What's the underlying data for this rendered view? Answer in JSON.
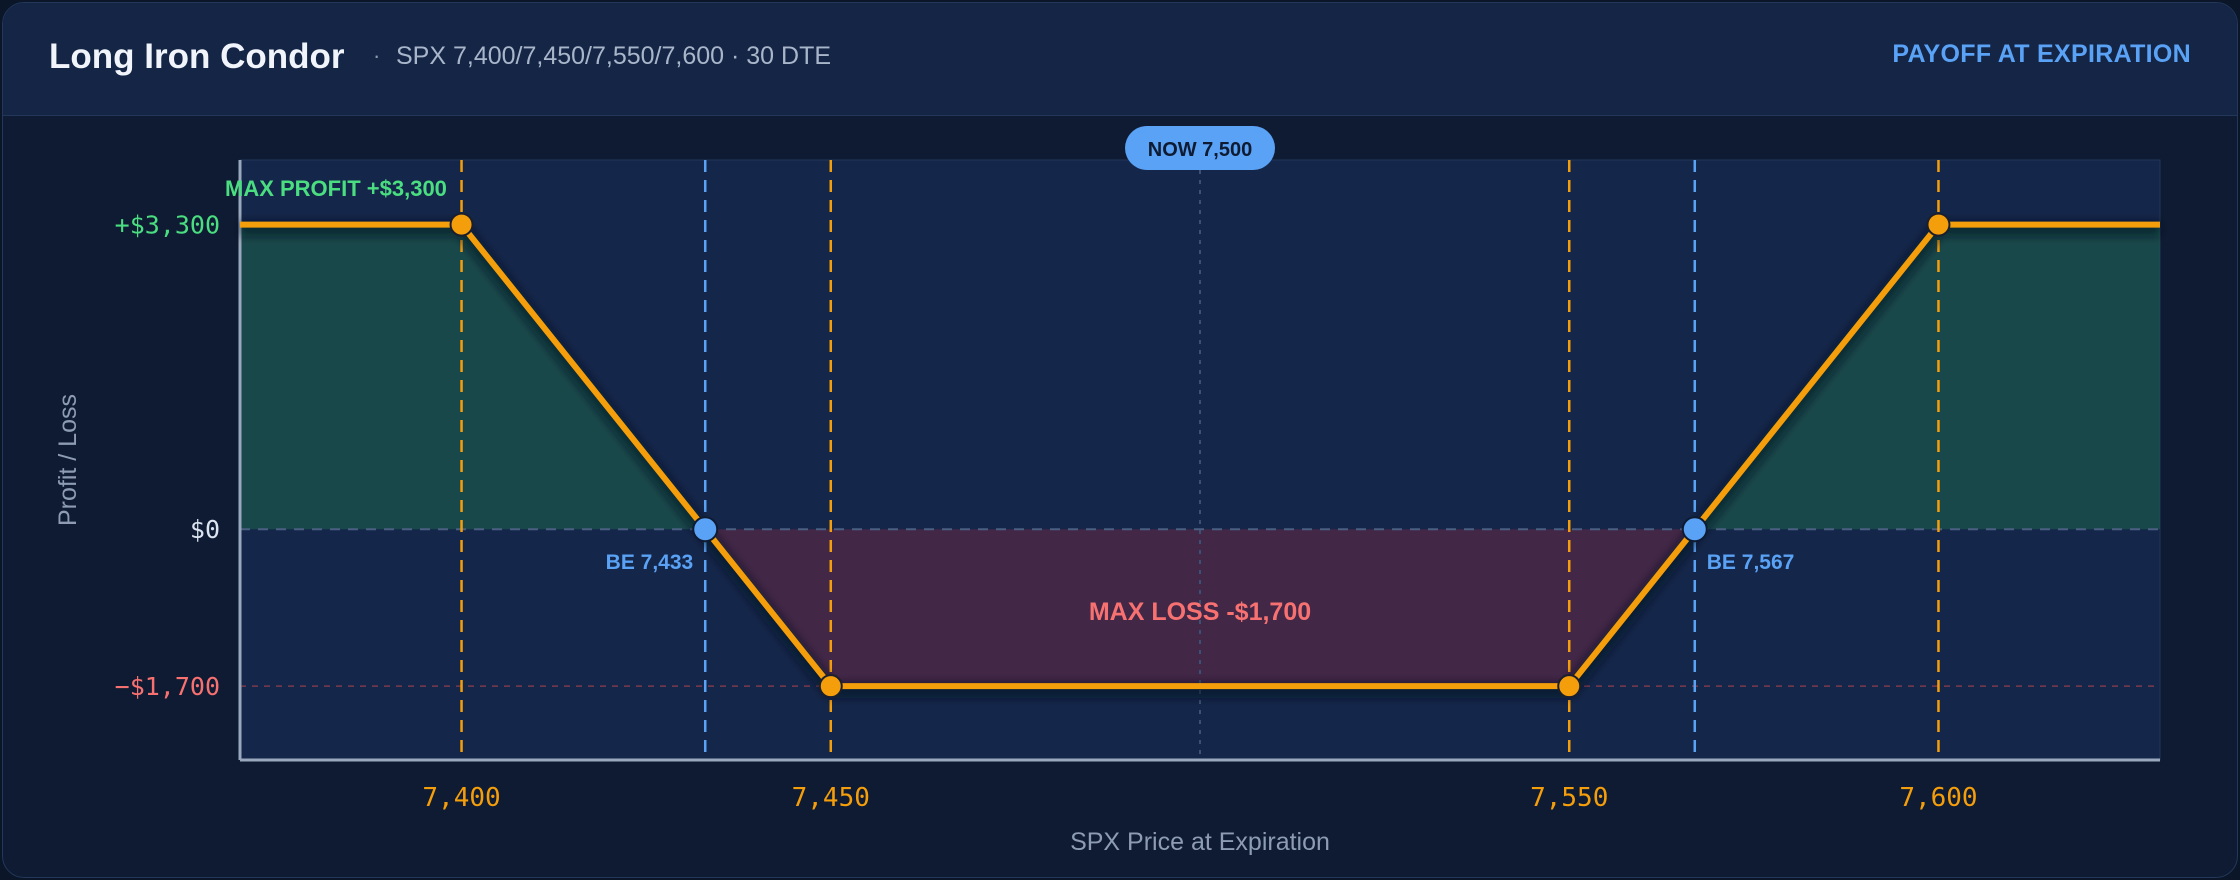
{
  "header": {
    "title": "Long Iron Condor",
    "separator": "·",
    "subtitle": "SPX 7,400/7,450/7,550/7,600 · 30 DTE",
    "mode": "PAYOFF AT EXPIRATION"
  },
  "chart_data": {
    "type": "line",
    "title": "Long Iron Condor",
    "xlabel": "SPX Price at Expiration",
    "ylabel": "Profit / Loss",
    "xlim": [
      7370,
      7630
    ],
    "ylim": [
      -2500,
      4000
    ],
    "x_ticks": [
      {
        "value": 7400,
        "label": "7,400"
      },
      {
        "value": 7450,
        "label": "7,450"
      },
      {
        "value": 7550,
        "label": "7,550"
      },
      {
        "value": 7600,
        "label": "7,600"
      }
    ],
    "y_ticks": [
      {
        "value": 3300,
        "label": "+$3,300"
      },
      {
        "value": 0,
        "label": "$0"
      },
      {
        "value": -1700,
        "label": "−$1,700"
      }
    ],
    "series": [
      {
        "points": [
          [
            7370,
            3300
          ],
          [
            7400,
            3300
          ],
          [
            7433,
            0
          ],
          [
            7450,
            -1700
          ],
          [
            7550,
            -1700
          ],
          [
            7567,
            0
          ],
          [
            7600,
            3300
          ],
          [
            7630,
            3300
          ]
        ]
      }
    ],
    "strikes": [
      7400,
      7450,
      7550,
      7600
    ],
    "breakevens": [
      {
        "x": 7433,
        "label": "BE 7,433"
      },
      {
        "x": 7567,
        "label": "BE 7,567"
      }
    ],
    "current_price": {
      "x": 7500,
      "label": "NOW 7,500"
    },
    "annotations": {
      "max_profit": "MAX PROFIT  +$3,300",
      "max_loss": "MAX LOSS  -$1,700"
    },
    "colors": {
      "payoff_line": "#f59e0b",
      "breakeven": "#5aa2f5",
      "profit_label": "#4ade80",
      "loss_label": "#f87171",
      "profit_tick": "#4ade80",
      "loss_tick": "#f87171",
      "zero_tick": "#dbe4f0",
      "strike_tick": "#f59e0b"
    }
  }
}
